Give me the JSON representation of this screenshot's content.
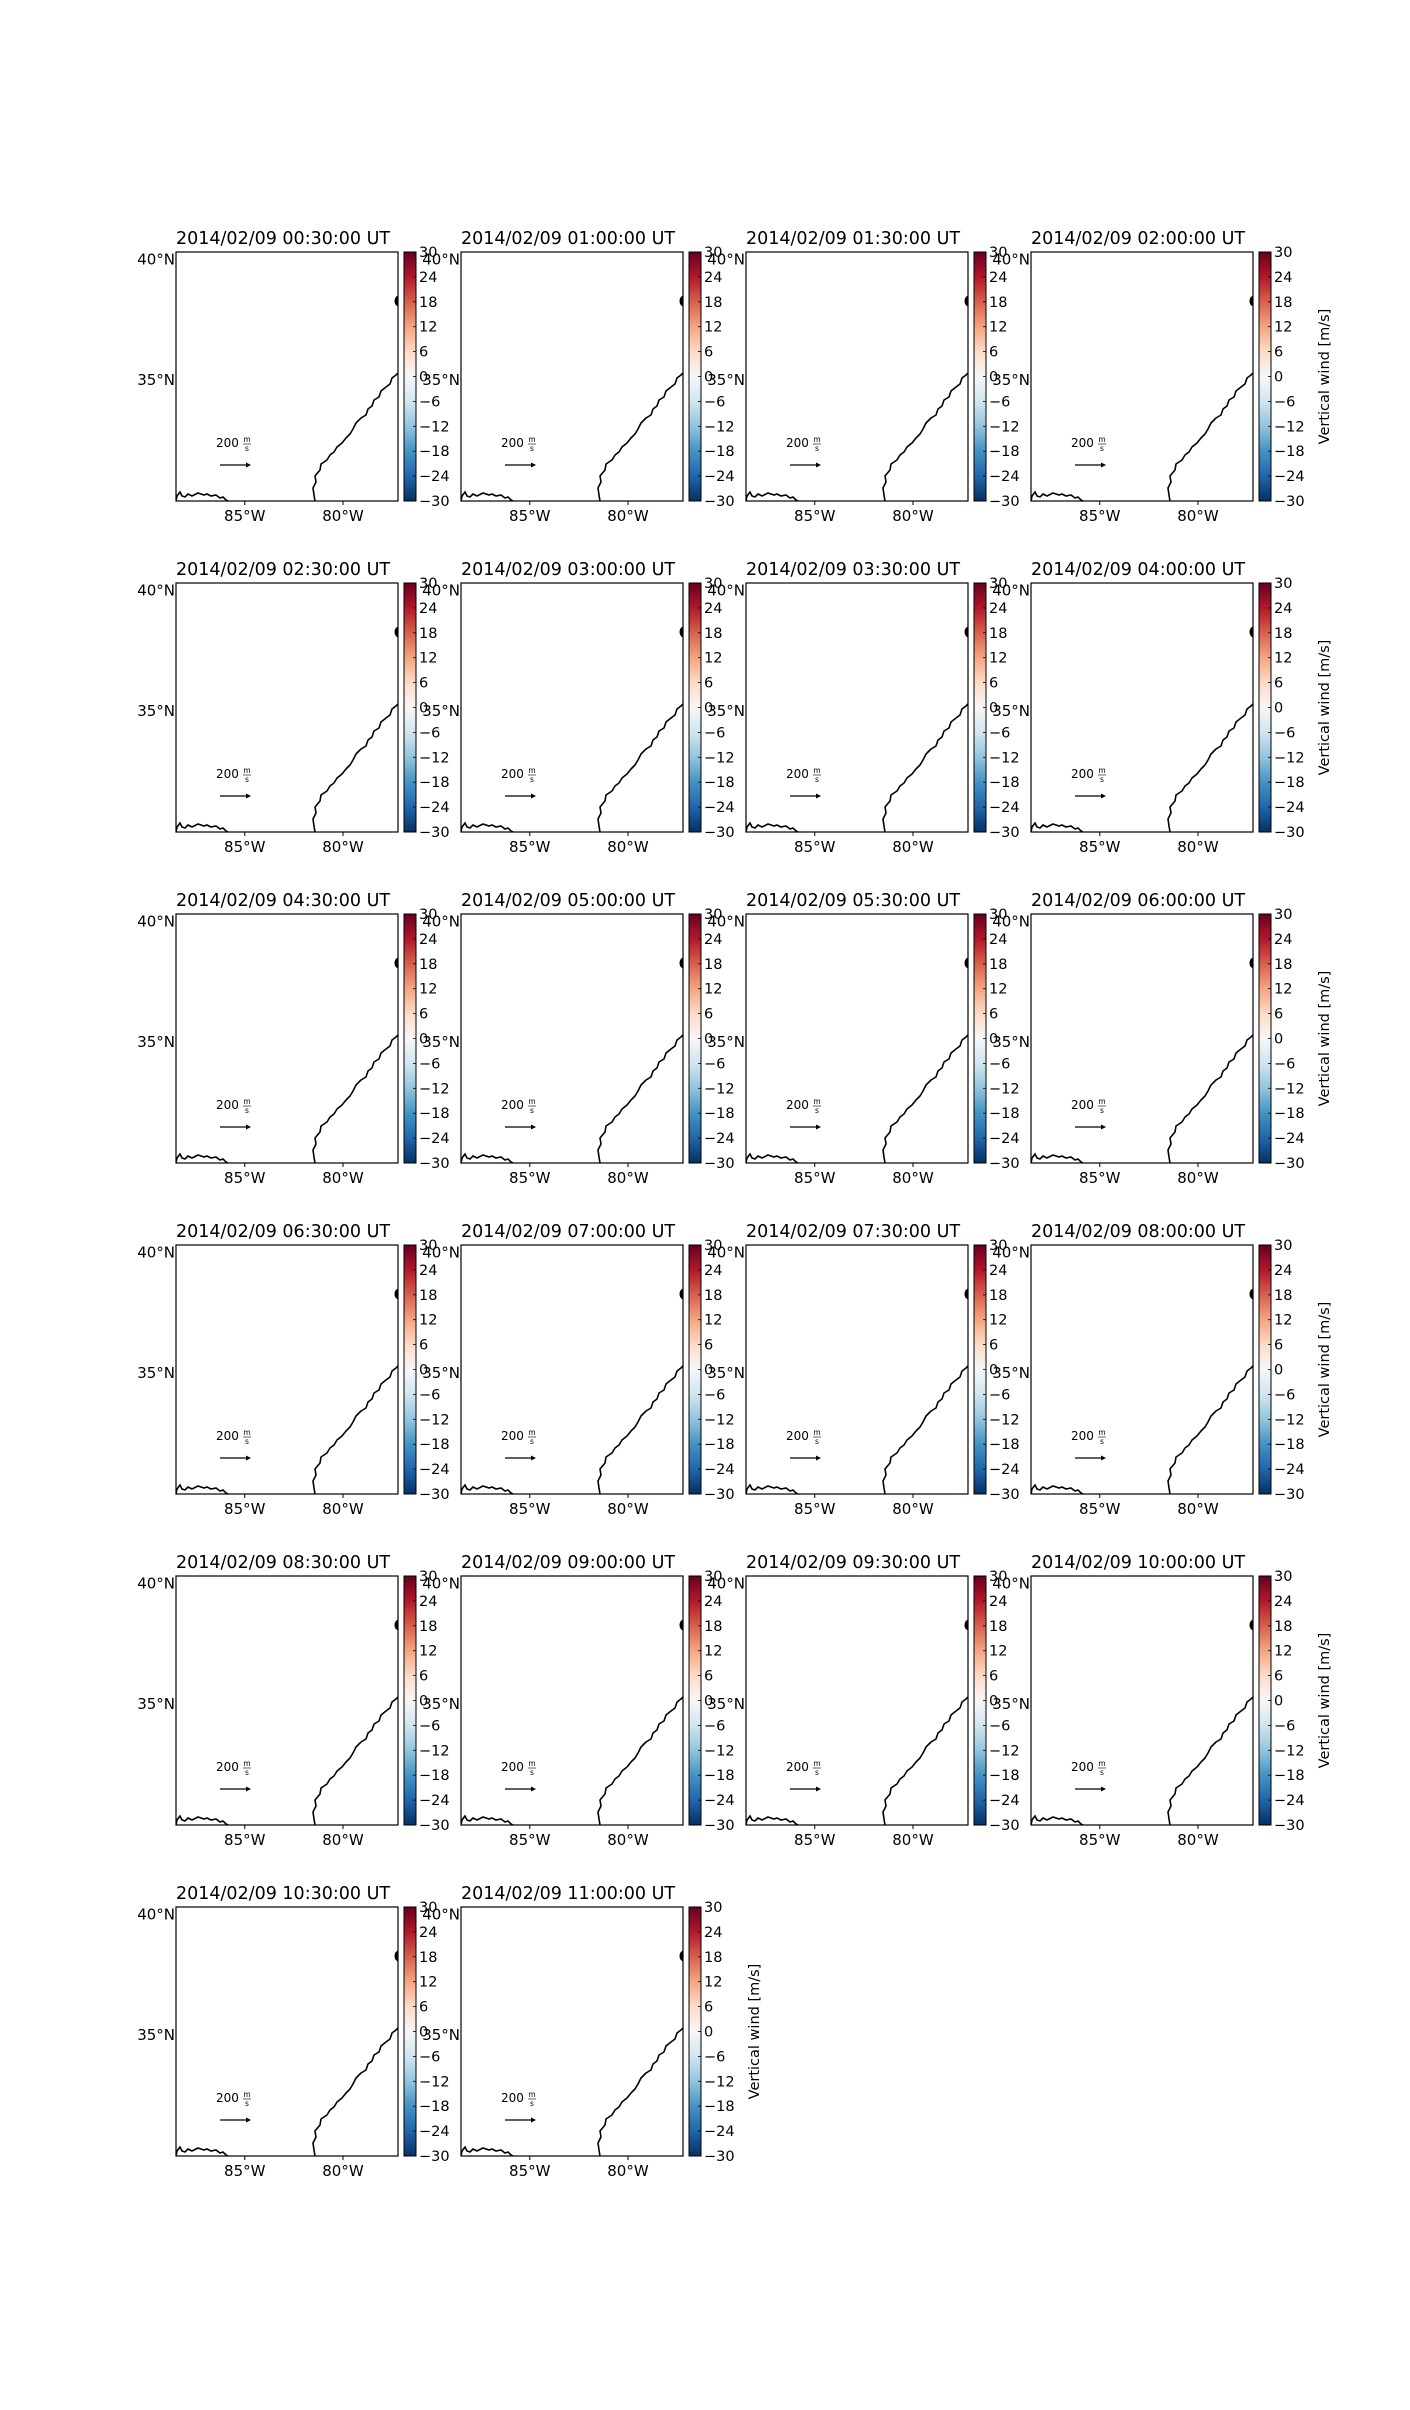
{
  "chart_data": {
    "type": "map",
    "colorbar": {
      "label": "Vertical wind [m/s]",
      "ticks": [
        30,
        24,
        18,
        12,
        6,
        0,
        -6,
        -12,
        -18,
        -24,
        -30
      ],
      "tick_labels": [
        "30",
        "24",
        "18",
        "12",
        "6",
        "0",
        "−6",
        "−12",
        "−18",
        "−24",
        "−30"
      ],
      "range": [
        -30,
        30
      ],
      "colors": [
        "#053061",
        "#2166ac",
        "#4393c3",
        "#92c5de",
        "#d1e5f0",
        "#f7f7f7",
        "#fddbc7",
        "#f4a582",
        "#d6604d",
        "#b2182b",
        "#67001f"
      ]
    },
    "lat_ticks": [
      {
        "value": 40,
        "label": "40°N"
      },
      {
        "value": 35,
        "label": "35°N"
      }
    ],
    "lon_ticks": [
      {
        "value": -85,
        "label": "85°W"
      },
      {
        "value": -80,
        "label": "80°W"
      }
    ],
    "extent": {
      "lon": [
        -88.5,
        -77.2
      ],
      "lat": [
        30.0,
        40.3
      ]
    },
    "reference_vector": {
      "magnitude": 200,
      "label_value": "200",
      "unit_numerator": "m",
      "unit_denominator": "s"
    },
    "panels": [
      {
        "title": "2014/02/09 00:30:00 UT"
      },
      {
        "title": "2014/02/09 01:00:00 UT"
      },
      {
        "title": "2014/02/09 01:30:00 UT"
      },
      {
        "title": "2014/02/09 02:00:00 UT"
      },
      {
        "title": "2014/02/09 02:30:00 UT"
      },
      {
        "title": "2014/02/09 03:00:00 UT"
      },
      {
        "title": "2014/02/09 03:30:00 UT"
      },
      {
        "title": "2014/02/09 04:00:00 UT"
      },
      {
        "title": "2014/02/09 04:30:00 UT"
      },
      {
        "title": "2014/02/09 05:00:00 UT"
      },
      {
        "title": "2014/02/09 05:30:00 UT"
      },
      {
        "title": "2014/02/09 06:00:00 UT"
      },
      {
        "title": "2014/02/09 06:30:00 UT"
      },
      {
        "title": "2014/02/09 07:00:00 UT"
      },
      {
        "title": "2014/02/09 07:30:00 UT"
      },
      {
        "title": "2014/02/09 08:00:00 UT"
      },
      {
        "title": "2014/02/09 08:30:00 UT"
      },
      {
        "title": "2014/02/09 09:00:00 UT"
      },
      {
        "title": "2014/02/09 09:30:00 UT"
      },
      {
        "title": "2014/02/09 10:00:00 UT"
      },
      {
        "title": "2014/02/09 10:30:00 UT"
      },
      {
        "title": "2014/02/09 11:00:00 UT"
      }
    ]
  }
}
